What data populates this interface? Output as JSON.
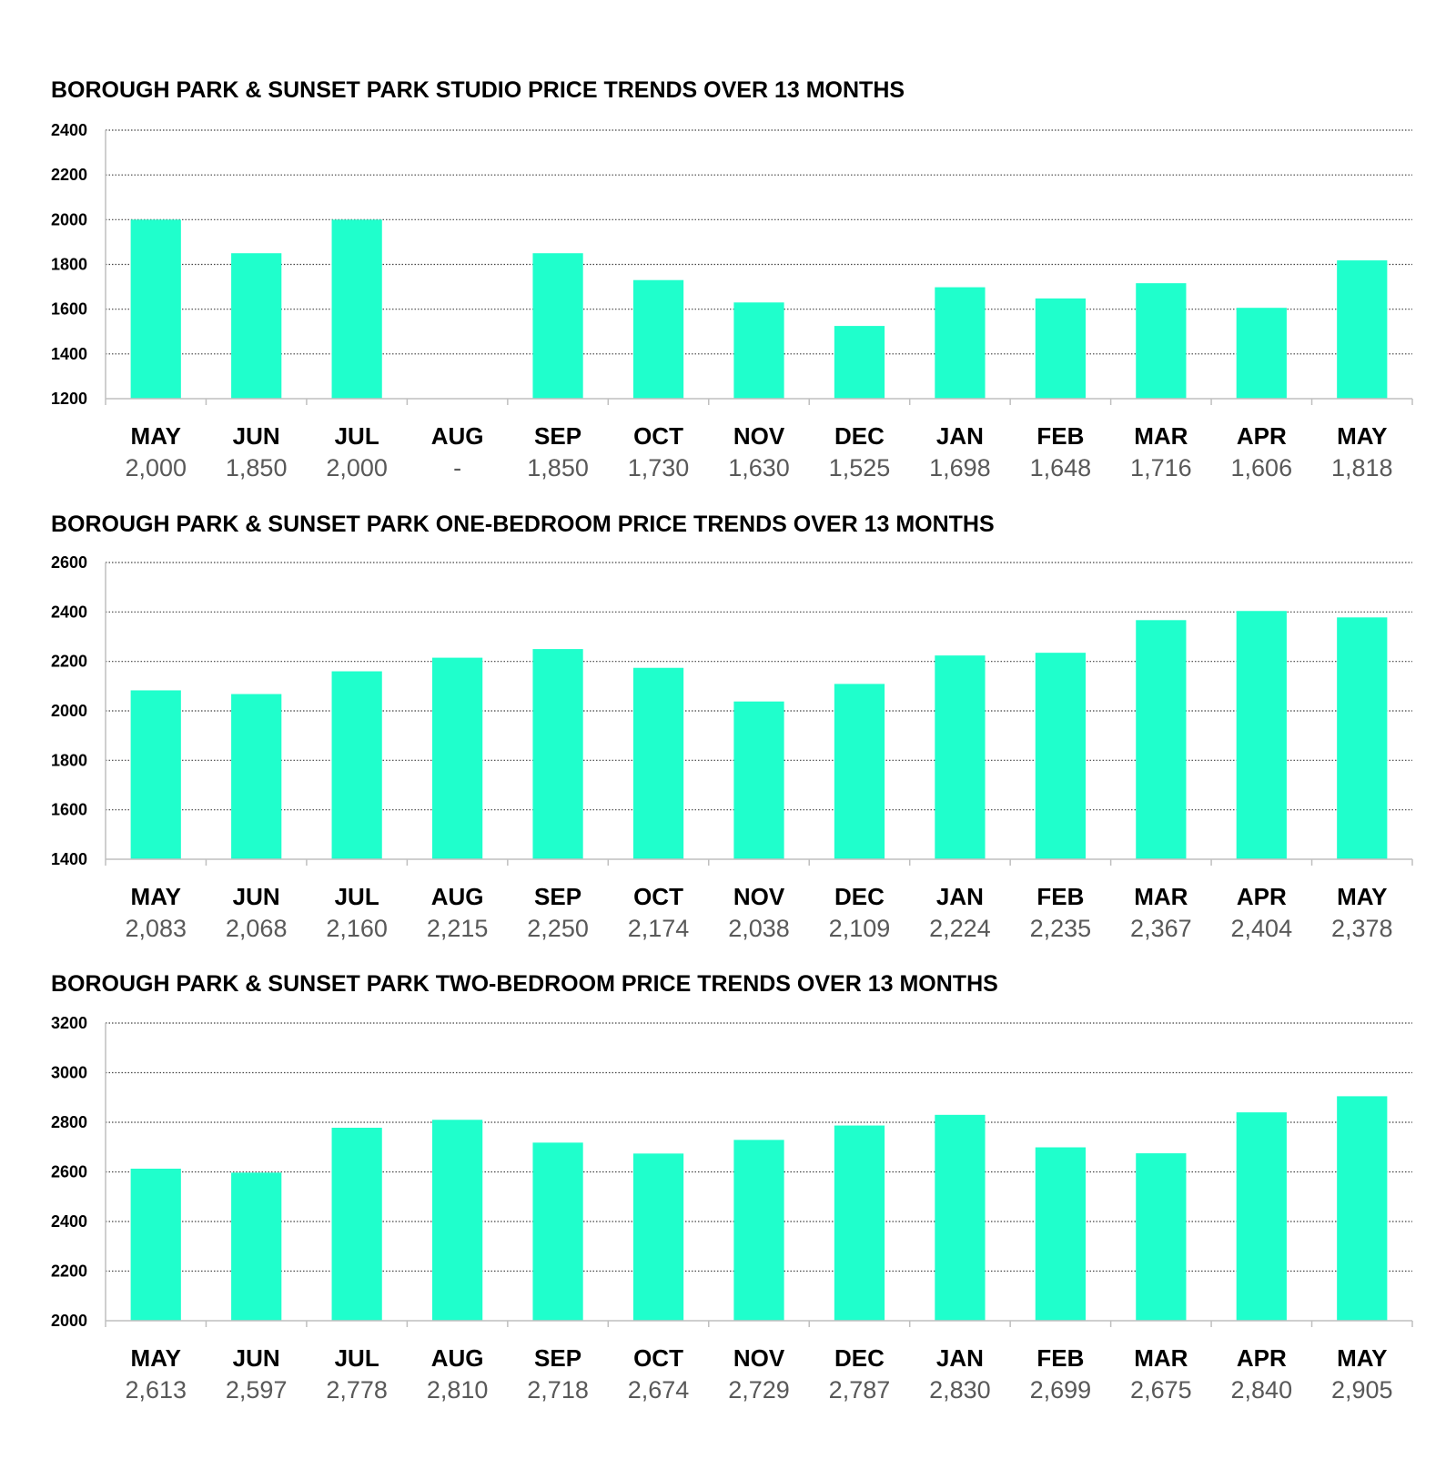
{
  "colors": {
    "bar": "#1fffcc",
    "grid": "#444444",
    "axis": "#bfbfbf",
    "value_text": "#595959"
  },
  "chart_data": [
    {
      "type": "bar",
      "title": "BOROUGH PARK & SUNSET PARK STUDIO PRICE TRENDS OVER 13 MONTHS",
      "categories": [
        "MAY",
        "JUN",
        "JUL",
        "AUG",
        "SEP",
        "OCT",
        "NOV",
        "DEC",
        "JAN",
        "FEB",
        "MAR",
        "APR",
        "MAY"
      ],
      "values": [
        2000,
        1850,
        2000,
        null,
        1850,
        1730,
        1630,
        1525,
        1698,
        1648,
        1716,
        1606,
        1818
      ],
      "value_labels": [
        "2,000",
        "1,850",
        "2,000",
        "-",
        "1,850",
        "1,730",
        "1,630",
        "1,525",
        "1,698",
        "1,648",
        "1,716",
        "1,606",
        "1,818"
      ],
      "ylim": [
        1200,
        2400
      ],
      "yticks": [
        1200,
        1400,
        1600,
        1800,
        2000,
        2200,
        2400
      ],
      "grid": true,
      "xlabel": "",
      "ylabel": ""
    },
    {
      "type": "bar",
      "title": "BOROUGH PARK & SUNSET PARK ONE-BEDROOM PRICE TRENDS OVER 13 MONTHS",
      "categories": [
        "MAY",
        "JUN",
        "JUL",
        "AUG",
        "SEP",
        "OCT",
        "NOV",
        "DEC",
        "JAN",
        "FEB",
        "MAR",
        "APR",
        "MAY"
      ],
      "values": [
        2083,
        2068,
        2160,
        2215,
        2250,
        2174,
        2038,
        2109,
        2224,
        2235,
        2367,
        2404,
        2378
      ],
      "value_labels": [
        "2,083",
        "2,068",
        "2,160",
        "2,215",
        "2,250",
        "2,174",
        "2,038",
        "2,109",
        "2,224",
        "2,235",
        "2,367",
        "2,404",
        "2,378"
      ],
      "ylim": [
        1400,
        2600
      ],
      "yticks": [
        1400,
        1600,
        1800,
        2000,
        2200,
        2400,
        2600
      ],
      "grid": true,
      "xlabel": "",
      "ylabel": ""
    },
    {
      "type": "bar",
      "title": "BOROUGH PARK & SUNSET PARK  TWO-BEDROOM PRICE TRENDS OVER 13 MONTHS",
      "categories": [
        "MAY",
        "JUN",
        "JUL",
        "AUG",
        "SEP",
        "OCT",
        "NOV",
        "DEC",
        "JAN",
        "FEB",
        "MAR",
        "APR",
        "MAY"
      ],
      "values": [
        2613,
        2597,
        2778,
        2810,
        2718,
        2674,
        2729,
        2787,
        2830,
        2699,
        2675,
        2840,
        2905
      ],
      "value_labels": [
        "2,613",
        "2,597",
        "2,778",
        "2,810",
        "2,718",
        "2,674",
        "2,729",
        "2,787",
        "2,830",
        "2,699",
        "2,675",
        "2,840",
        "2,905"
      ],
      "ylim": [
        2000,
        3200
      ],
      "yticks": [
        2000,
        2200,
        2400,
        2600,
        2800,
        3000,
        3200
      ],
      "grid": true,
      "xlabel": "",
      "ylabel": ""
    }
  ]
}
